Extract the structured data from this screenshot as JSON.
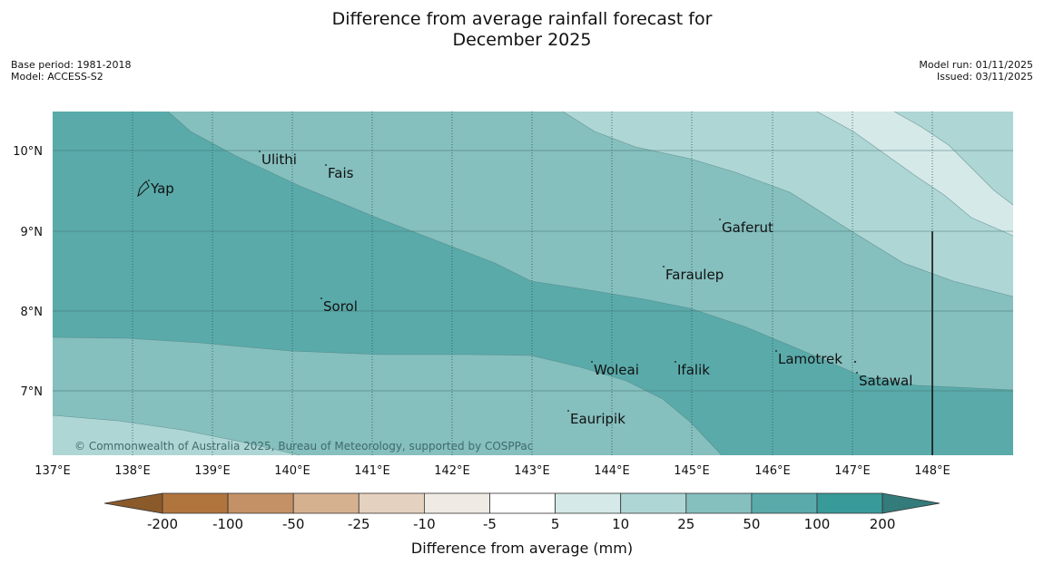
{
  "title": {
    "line1": "Difference from average rainfall forecast for",
    "line2": "December 2025"
  },
  "meta_left": {
    "base_period": "Base period: 1981-2018",
    "model": "Model: ACCESS-S2"
  },
  "meta_right": {
    "model_run": "Model run: 01/11/2025",
    "issued": "Issued: 03/11/2025"
  },
  "axes": {
    "x_ticks": [
      "137°E",
      "138°E",
      "139°E",
      "140°E",
      "141°E",
      "142°E",
      "143°E",
      "144°E",
      "145°E",
      "146°E",
      "147°E",
      "148°E"
    ],
    "y_ticks": [
      "10°N",
      "9°N",
      "8°N",
      "7°N"
    ]
  },
  "places": [
    {
      "name": "Yap"
    },
    {
      "name": "Ulithi"
    },
    {
      "name": "Fais"
    },
    {
      "name": "Gaferut"
    },
    {
      "name": "Faraulep"
    },
    {
      "name": "Sorol"
    },
    {
      "name": "Woleai"
    },
    {
      "name": "Ifalik"
    },
    {
      "name": "Lamotrek"
    },
    {
      "name": "Satawal"
    },
    {
      "name": "Eauripik"
    }
  ],
  "copyright": "© Commonwealth of Australia 2025, Bureau of Meteorology, supported by COSPPac",
  "colorbar": {
    "labels": [
      "-200",
      "-100",
      "-50",
      "-25",
      "-10",
      "-5",
      "5",
      "10",
      "25",
      "50",
      "100",
      "200"
    ],
    "colors": [
      "#8b5a2b",
      "#b0743d",
      "#c49166",
      "#d6b190",
      "#e5d1bf",
      "#efebe4",
      "#ffffff",
      "#d4e9e8",
      "#aed6d5",
      "#85bfbe",
      "#5aaaaa",
      "#389a99",
      "#347b7b"
    ],
    "title": "Difference from average (mm)"
  },
  "map_colors": {
    "band_10_25": "#aed6d5",
    "band_5_10": "#d4e9e8",
    "band_25_50": "#85bfbe",
    "band_50_100": "#5aaaaa"
  }
}
